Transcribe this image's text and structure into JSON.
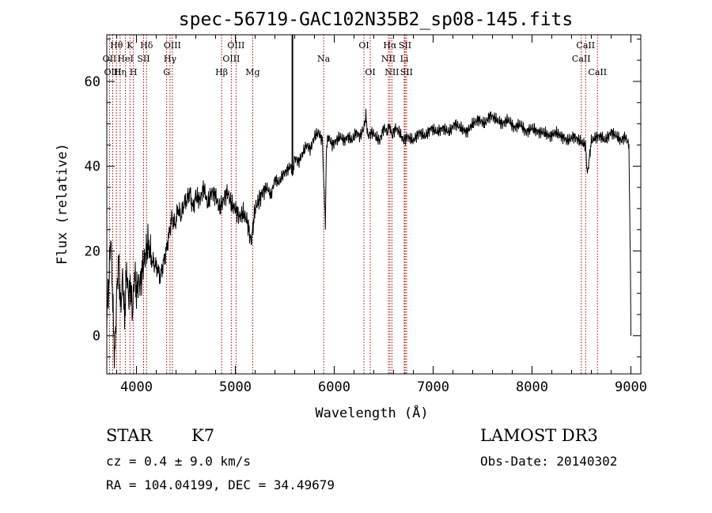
{
  "chart_data": {
    "type": "line",
    "title": "spec-56719-GAC102N35B2_sp08-145.fits",
    "xlabel": "Wavelength (Å)",
    "ylabel": "Flux (relative)",
    "xlim": [
      3700,
      9100
    ],
    "ylim": [
      -9,
      71
    ],
    "xticks": [
      4000,
      5000,
      6000,
      7000,
      8000,
      9000
    ],
    "yticks": [
      0,
      20,
      40,
      60
    ],
    "series": [
      {
        "name": "spectrum",
        "x": [
          3700,
          3720,
          3740,
          3760,
          3780,
          3800,
          3820,
          3840,
          3860,
          3880,
          3900,
          3920,
          3940,
          3960,
          3980,
          4000,
          4020,
          4040,
          4060,
          4080,
          4100,
          4120,
          4150,
          4180,
          4210,
          4240,
          4270,
          4300,
          4330,
          4360,
          4390,
          4420,
          4450,
          4480,
          4510,
          4540,
          4570,
          4600,
          4640,
          4680,
          4720,
          4760,
          4800,
          4840,
          4880,
          4920,
          4960,
          5000,
          5040,
          5080,
          5120,
          5160,
          5200,
          5240,
          5280,
          5320,
          5360,
          5400,
          5440,
          5480,
          5520,
          5560,
          5580,
          5600,
          5640,
          5680,
          5720,
          5760,
          5800,
          5840,
          5880,
          5910,
          5920,
          5940,
          5980,
          6020,
          6060,
          6100,
          6140,
          6180,
          6220,
          6260,
          6300,
          6320,
          6340,
          6380,
          6420,
          6460,
          6500,
          6540,
          6562,
          6580,
          6620,
          6660,
          6700,
          6740,
          6800,
          6860,
          6920,
          6980,
          7040,
          7100,
          7160,
          7220,
          7280,
          7340,
          7400,
          7460,
          7520,
          7580,
          7640,
          7700,
          7760,
          7820,
          7880,
          7940,
          8000,
          8060,
          8120,
          8180,
          8240,
          8300,
          8360,
          8420,
          8480,
          8540,
          8560,
          8600,
          8660,
          8700,
          8740,
          8800,
          8860,
          8900,
          8940,
          8980,
          8995,
          9000
        ],
        "values": [
          5,
          12,
          24,
          8,
          -6,
          10,
          18,
          6,
          14,
          4,
          16,
          9,
          12,
          5,
          15,
          10,
          13,
          12,
          16,
          18,
          20,
          22,
          18,
          17,
          16,
          14,
          17,
          20,
          24,
          28,
          26,
          30,
          28,
          31,
          32,
          34,
          30,
          33,
          32,
          35,
          31,
          34,
          33,
          30,
          32,
          34,
          31,
          30,
          28,
          29,
          27,
          22,
          30,
          32,
          34,
          35,
          33,
          37,
          36,
          38,
          39,
          40,
          38,
          42,
          41,
          43,
          45,
          44,
          47,
          48,
          46,
          26,
          44,
          47,
          45,
          46,
          47,
          46,
          47,
          46,
          48,
          47,
          49,
          52,
          47,
          48,
          47,
          46,
          49,
          48,
          50,
          47,
          49,
          48,
          46,
          47,
          46,
          48,
          47,
          49,
          48,
          49,
          48,
          50,
          49,
          48,
          50,
          51,
          50,
          52,
          51,
          50,
          51,
          49,
          50,
          48,
          49,
          48,
          48,
          47,
          48,
          47,
          46,
          47,
          46,
          45,
          38,
          46,
          47,
          47,
          46,
          48,
          47,
          46,
          47,
          45,
          15,
          0
        ],
        "color": "#000000"
      }
    ],
    "line_markers": [
      {
        "label": "Hθ",
        "wavelength": 3798,
        "row": 1
      },
      {
        "label": "OII",
        "wavelength": 3727,
        "row": 2
      },
      {
        "label": "OIII",
        "wavelength": 3760,
        "row": 3
      },
      {
        "label": "HeI",
        "wavelength": 3889,
        "row": 2
      },
      {
        "label": "Hη",
        "wavelength": 3835,
        "row": 3
      },
      {
        "label": "K",
        "wavelength": 3934,
        "row": 1
      },
      {
        "label": "H",
        "wavelength": 3969,
        "row": 3
      },
      {
        "label": "SII",
        "wavelength": 4072,
        "row": 2
      },
      {
        "label": "Hδ",
        "wavelength": 4102,
        "row": 1
      },
      {
        "label": "OIII",
        "wavelength": 4363,
        "row": 1
      },
      {
        "label": "Hγ",
        "wavelength": 4340,
        "row": 2
      },
      {
        "label": "G",
        "wavelength": 4305,
        "row": 3
      },
      {
        "label": "Hβ",
        "wavelength": 4861,
        "row": 3
      },
      {
        "label": "OIII",
        "wavelength": 5007,
        "row": 1
      },
      {
        "label": "OIII",
        "wavelength": 4959,
        "row": 2
      },
      {
        "label": "Mg",
        "wavelength": 5175,
        "row": 3
      },
      {
        "label": "Na",
        "wavelength": 5893,
        "row": 2
      },
      {
        "label": "OI",
        "wavelength": 6300,
        "row": 1
      },
      {
        "label": "OI",
        "wavelength": 6364,
        "row": 3
      },
      {
        "label": "Hα",
        "wavelength": 6563,
        "row": 1
      },
      {
        "label": "SII",
        "wavelength": 6716,
        "row": 1
      },
      {
        "label": "NII",
        "wavelength": 6548,
        "row": 2
      },
      {
        "label": "Li",
        "wavelength": 6708,
        "row": 2
      },
      {
        "label": "NII",
        "wavelength": 6583,
        "row": 3
      },
      {
        "label": "SII",
        "wavelength": 6731,
        "row": 3
      },
      {
        "label": "CaII",
        "wavelength": 8542,
        "row": 1
      },
      {
        "label": "CaII",
        "wavelength": 8498,
        "row": 2
      },
      {
        "label": "CaII",
        "wavelength": 8662,
        "row": 3
      }
    ],
    "marker_color": "#aa0000",
    "vertical_line": {
      "wavelength": 5577
    }
  },
  "info": {
    "object_type": "STAR",
    "subclass": "K7",
    "velocity": "cz = 0.4 ± 9.0 km/s",
    "coordinates": "RA = 104.04199, DEC =  34.49679",
    "survey": "LAMOST DR3",
    "obs_date": "Obs-Date: 20140302"
  }
}
